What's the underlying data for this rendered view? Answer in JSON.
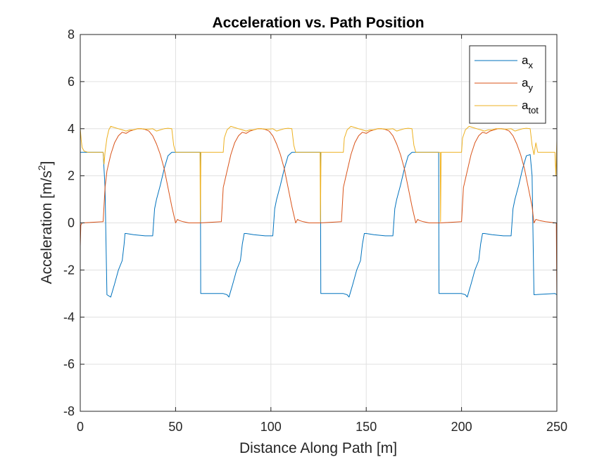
{
  "chart_data": {
    "type": "line",
    "title": "Acceleration vs. Path Position",
    "xlabel": "Distance Along Path [m]",
    "ylabel_parts": {
      "base": "Acceleration [m/s",
      "sup": "2",
      "end": "]"
    },
    "xlim": [
      0,
      250
    ],
    "ylim": [
      -8,
      8
    ],
    "xticks": [
      0,
      50,
      100,
      150,
      200,
      250
    ],
    "yticks": [
      -8,
      -6,
      -4,
      -2,
      0,
      2,
      4,
      6,
      8
    ],
    "xtick_labels": [
      "0",
      "50",
      "100",
      "150",
      "200",
      "250"
    ],
    "ytick_labels": [
      "-8",
      "-6",
      "-4",
      "-2",
      "0",
      "2",
      "4",
      "6",
      "8"
    ],
    "grid": true,
    "legend_position": "top-right",
    "series": [
      {
        "name": "a_x",
        "label_base": "a",
        "label_sub": "x",
        "color": "#0072BD",
        "x": [
          0,
          12,
          13,
          14,
          16,
          18,
          20,
          22,
          23,
          23.5,
          24,
          28,
          34,
          38,
          39,
          40,
          42,
          44,
          46,
          48,
          50,
          52,
          63,
          63.2,
          64,
          75,
          77,
          78,
          80,
          82,
          84,
          85,
          86,
          86.5,
          87,
          91,
          97,
          101,
          102,
          103,
          105,
          107,
          109,
          111,
          113,
          115,
          126,
          126.2,
          127,
          138,
          140,
          141,
          143,
          145,
          147,
          148,
          149,
          149.5,
          150,
          154,
          160,
          164,
          165,
          166,
          168,
          170,
          172,
          174,
          176,
          178,
          188,
          188.2,
          189,
          200,
          202,
          203,
          205,
          207,
          209,
          210,
          211,
          211.5,
          212,
          216,
          222,
          226,
          227,
          228,
          230,
          232,
          234,
          236,
          237,
          238,
          249,
          250
        ],
        "y": [
          3.0,
          3.0,
          1.5,
          -3.05,
          -3.15,
          -2.6,
          -2.0,
          -1.6,
          -0.9,
          -0.45,
          -0.45,
          -0.5,
          -0.55,
          -0.55,
          0.6,
          1.0,
          1.6,
          2.3,
          2.85,
          3.0,
          3.0,
          3.0,
          3.0,
          -3.0,
          -3.0,
          -3.0,
          -3.05,
          -3.15,
          -2.6,
          -2.0,
          -1.6,
          -0.9,
          -0.45,
          -0.45,
          -0.45,
          -0.5,
          -0.55,
          -0.55,
          0.6,
          1.0,
          1.6,
          2.3,
          2.85,
          3.0,
          3.0,
          3.0,
          3.0,
          -3.0,
          -3.0,
          -3.0,
          -3.05,
          -3.15,
          -2.6,
          -2.0,
          -1.6,
          -0.9,
          -0.45,
          -0.45,
          -0.45,
          -0.5,
          -0.55,
          -0.55,
          0.6,
          1.0,
          1.6,
          2.3,
          2.85,
          3.0,
          3.0,
          3.0,
          3.0,
          -3.0,
          -3.0,
          -3.0,
          -3.05,
          -3.15,
          -2.6,
          -2.0,
          -1.6,
          -0.9,
          -0.45,
          -0.45,
          -0.45,
          -0.5,
          -0.55,
          -0.55,
          0.6,
          1.0,
          1.6,
          2.3,
          2.85,
          2.9,
          2.0,
          -3.05,
          -3.0,
          -3.05
        ]
      },
      {
        "name": "a_y",
        "label_base": "a",
        "label_sub": "y",
        "color": "#D95319",
        "x": [
          0,
          0.3,
          1,
          12,
          13,
          14,
          16,
          18,
          20,
          22,
          24,
          26,
          28,
          30,
          32,
          34,
          36,
          38,
          40,
          42,
          44,
          46,
          48,
          50,
          51,
          52,
          54,
          57,
          63,
          74,
          75,
          77,
          79,
          81,
          83,
          85,
          87,
          89,
          91,
          93,
          95,
          97,
          99,
          101,
          103,
          105,
          107,
          109,
          111,
          113,
          114,
          115,
          117,
          120,
          126,
          137,
          138,
          140,
          142,
          144,
          146,
          148,
          150,
          152,
          154,
          156,
          158,
          160,
          162,
          164,
          166,
          168,
          170,
          172,
          174,
          176,
          177,
          178,
          180,
          183,
          189,
          200,
          201,
          203,
          205,
          207,
          209,
          211,
          213,
          215,
          217,
          219,
          221,
          223,
          225,
          227,
          229,
          231,
          233,
          235,
          237,
          238,
          239,
          241,
          244,
          249.3,
          249.7,
          250
        ],
        "y": [
          -1.0,
          -0.1,
          0.0,
          0.05,
          1.5,
          2.2,
          2.9,
          3.4,
          3.7,
          3.85,
          3.8,
          3.9,
          3.95,
          4.0,
          4.0,
          3.97,
          3.9,
          3.7,
          3.35,
          2.9,
          2.3,
          1.5,
          0.7,
          0.0,
          0.15,
          0.1,
          0.05,
          0.0,
          0.0,
          0.05,
          1.5,
          2.2,
          2.9,
          3.4,
          3.7,
          3.85,
          3.8,
          3.9,
          3.95,
          4.0,
          4.0,
          3.97,
          3.9,
          3.7,
          3.35,
          2.9,
          2.3,
          1.5,
          0.7,
          0.0,
          0.15,
          0.1,
          0.05,
          0.0,
          0.0,
          0.05,
          1.5,
          2.2,
          2.9,
          3.4,
          3.7,
          3.85,
          3.8,
          3.9,
          3.95,
          4.0,
          4.0,
          3.97,
          3.9,
          3.7,
          3.35,
          2.9,
          2.3,
          1.5,
          0.7,
          0.0,
          0.15,
          0.1,
          0.05,
          0.0,
          0.0,
          0.05,
          1.5,
          2.2,
          2.9,
          3.4,
          3.7,
          3.85,
          3.8,
          3.9,
          3.95,
          4.0,
          4.0,
          3.97,
          3.9,
          3.7,
          3.35,
          2.9,
          2.3,
          1.5,
          0.7,
          0.0,
          0.15,
          0.1,
          0.05,
          0.0,
          0.0,
          -3.3
        ]
      },
      {
        "name": "a_tot",
        "label_base": "a",
        "label_sub": "tot",
        "color": "#EDB120",
        "x": [
          0,
          0.5,
          1,
          2,
          4,
          6,
          8,
          12,
          12.5,
          13,
          14,
          15,
          16,
          18,
          20,
          22,
          24,
          26,
          28,
          30,
          32,
          34,
          36,
          38,
          40,
          42,
          44,
          46,
          48,
          49,
          50,
          52,
          62.8,
          63,
          63.3,
          64,
          75,
          75.5,
          77,
          79,
          81,
          83,
          85,
          87,
          89,
          91,
          93,
          95,
          97,
          99,
          101,
          103,
          105,
          107,
          109,
          111,
          112,
          113,
          115,
          125.8,
          126,
          126.3,
          127,
          138,
          138.5,
          140,
          142,
          144,
          146,
          148,
          150,
          152,
          154,
          156,
          158,
          160,
          162,
          164,
          166,
          168,
          170,
          172,
          174,
          175,
          176,
          178,
          188.8,
          189,
          189.3,
          190,
          200,
          200.5,
          202,
          204,
          206,
          208,
          210,
          212,
          214,
          216,
          218,
          220,
          222,
          224,
          226,
          228,
          230,
          232,
          234,
          236,
          237,
          238,
          239,
          240,
          249,
          249.5,
          250
        ],
        "y": [
          4.0,
          3.5,
          3.2,
          3.05,
          3.0,
          3.0,
          3.0,
          3.0,
          2.5,
          3.0,
          3.6,
          3.95,
          4.1,
          4.05,
          4.0,
          3.95,
          3.9,
          3.95,
          3.95,
          4.0,
          4.0,
          3.98,
          3.98,
          4.0,
          3.9,
          3.95,
          4.0,
          4.02,
          4.0,
          3.3,
          3.0,
          3.0,
          3.0,
          0.05,
          3.0,
          3.0,
          3.0,
          3.6,
          3.95,
          4.1,
          4.05,
          4.0,
          3.95,
          3.9,
          3.95,
          3.95,
          4.0,
          4.0,
          3.98,
          3.98,
          4.0,
          3.9,
          3.95,
          4.0,
          4.02,
          4.0,
          3.3,
          3.0,
          3.0,
          3.0,
          0.05,
          3.0,
          3.0,
          3.0,
          3.6,
          3.95,
          4.1,
          4.05,
          4.0,
          3.95,
          3.9,
          3.95,
          3.95,
          4.0,
          4.0,
          3.98,
          3.98,
          4.0,
          3.9,
          3.95,
          4.0,
          4.02,
          4.0,
          3.3,
          3.0,
          3.0,
          3.0,
          0.05,
          3.0,
          3.0,
          3.0,
          3.6,
          3.95,
          4.1,
          4.05,
          4.0,
          3.95,
          3.9,
          3.95,
          3.95,
          4.0,
          4.0,
          3.98,
          3.98,
          4.0,
          3.9,
          3.95,
          4.0,
          4.02,
          4.0,
          3.3,
          2.9,
          3.4,
          3.0,
          3.0,
          2.0,
          3.5
        ]
      }
    ]
  }
}
